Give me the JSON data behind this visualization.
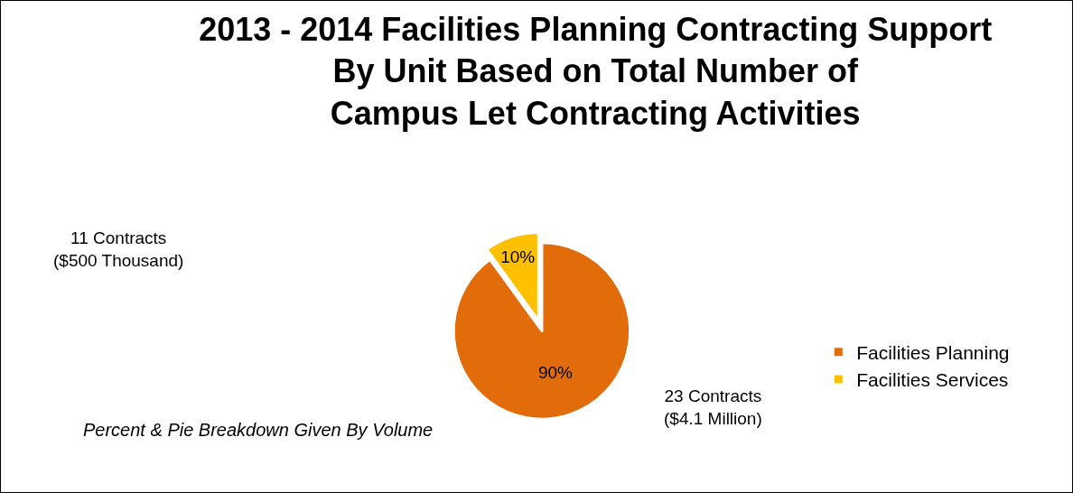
{
  "chart_data": {
    "type": "pie",
    "title": "2013 - 2014 Facilities Planning Contracting Support\nBy Unit Based on Total Number of\nCampus Let Contracting Activities",
    "categories": [
      "Facilities Planning",
      "Facilities Services"
    ],
    "values": [
      90,
      10
    ],
    "colors": [
      "#e36c0a",
      "#ffc000"
    ],
    "value_labels": [
      "90%",
      "10%"
    ],
    "legend": "right",
    "annotations": [
      "11 Contracts\n($500 Thousand)",
      "23 Contracts\n($4.1 Million)",
      "Percent & Pie Breakdown Given By Volume"
    ]
  }
}
